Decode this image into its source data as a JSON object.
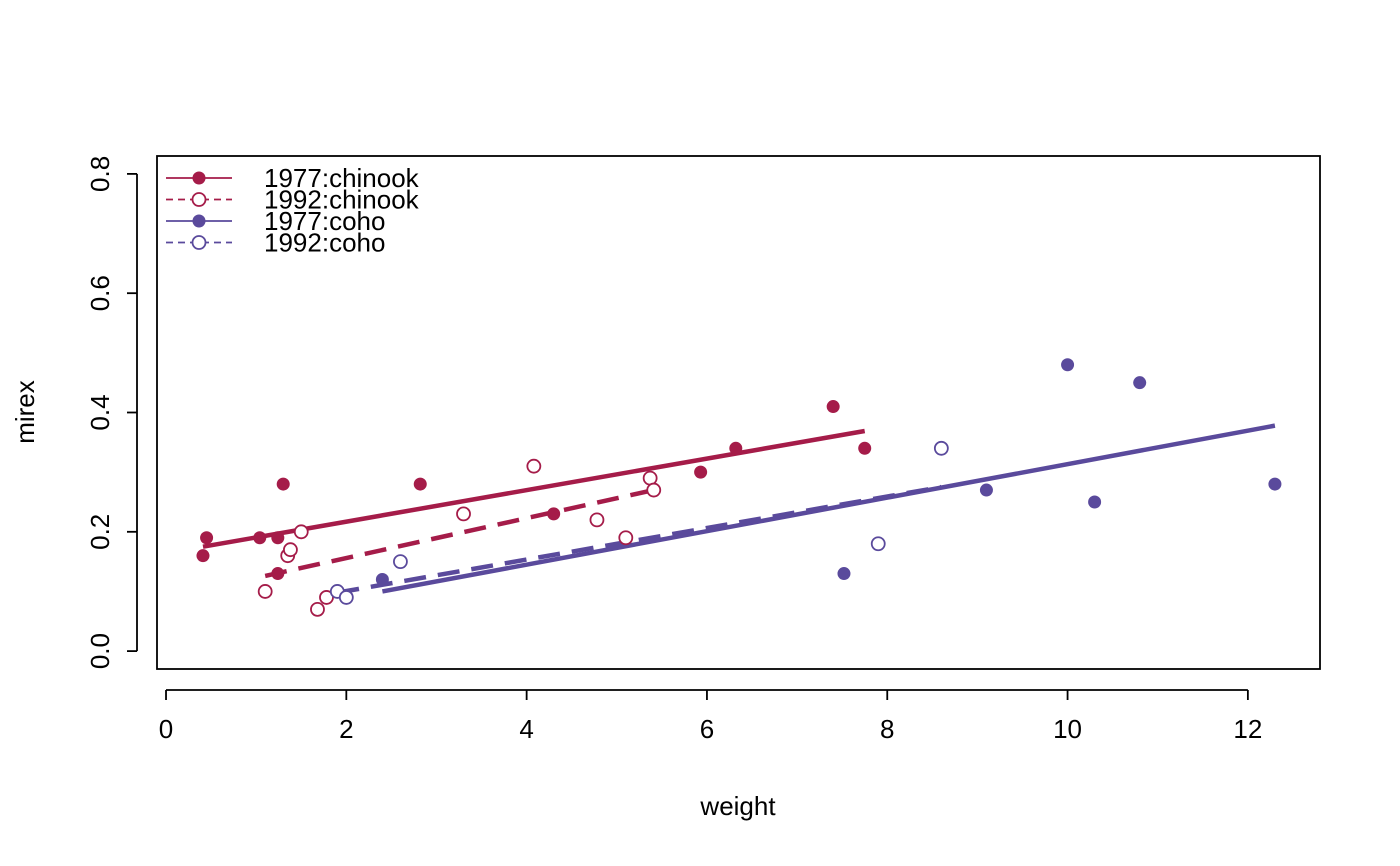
{
  "chart_data": {
    "type": "scatter",
    "title": "",
    "xlabel": "weight",
    "ylabel": "mirex",
    "xlim": [
      -0.1,
      12.8
    ],
    "ylim": [
      -0.03,
      0.83
    ],
    "x_ticks": [
      0,
      2,
      4,
      6,
      8,
      10,
      12
    ],
    "y_ticks": [
      0.0,
      0.2,
      0.4,
      0.6,
      0.8
    ],
    "x_tick_labels": [
      "0",
      "2",
      "4",
      "6",
      "8",
      "10",
      "12"
    ],
    "y_tick_labels": [
      "0.0",
      "0.2",
      "0.4",
      "0.6",
      "0.8"
    ],
    "grid": false,
    "legend_position": "top-left",
    "series": [
      {
        "name": "1977:chinook",
        "color": "#a51c49",
        "marker": "filled-circle",
        "line_style": "solid",
        "points": [
          [
            0.41,
            0.16
          ],
          [
            0.45,
            0.19
          ],
          [
            1.04,
            0.19
          ],
          [
            1.24,
            0.19
          ],
          [
            1.24,
            0.13
          ],
          [
            1.3,
            0.28
          ],
          [
            2.82,
            0.28
          ],
          [
            4.3,
            0.23
          ],
          [
            5.93,
            0.3
          ],
          [
            6.32,
            0.34
          ],
          [
            7.4,
            0.41
          ],
          [
            7.75,
            0.34
          ]
        ],
        "fit": [
          [
            0.41,
            0.175
          ],
          [
            7.75,
            0.369
          ]
        ]
      },
      {
        "name": "1992:chinook",
        "color": "#a51c49",
        "marker": "open-circle",
        "line_style": "dashed",
        "points": [
          [
            1.1,
            0.1
          ],
          [
            1.35,
            0.16
          ],
          [
            1.38,
            0.17
          ],
          [
            1.5,
            0.2
          ],
          [
            1.68,
            0.07
          ],
          [
            1.78,
            0.09
          ],
          [
            3.3,
            0.23
          ],
          [
            4.08,
            0.31
          ],
          [
            4.78,
            0.22
          ],
          [
            5.1,
            0.19
          ],
          [
            5.37,
            0.29
          ],
          [
            5.41,
            0.27
          ]
        ],
        "fit": [
          [
            1.1,
            0.126
          ],
          [
            5.41,
            0.27
          ]
        ]
      },
      {
        "name": "1977:coho",
        "color": "#5a4a9c",
        "marker": "filled-circle",
        "line_style": "solid",
        "points": [
          [
            2.4,
            0.12
          ],
          [
            7.52,
            0.13
          ],
          [
            9.1,
            0.27
          ],
          [
            10.0,
            0.48
          ],
          [
            10.3,
            0.25
          ],
          [
            10.8,
            0.45
          ],
          [
            12.3,
            0.28
          ]
        ],
        "fit": [
          [
            2.4,
            0.1
          ],
          [
            12.3,
            0.378
          ]
        ]
      },
      {
        "name": "1992:coho",
        "color": "#5a4a9c",
        "marker": "open-circle",
        "line_style": "dashed",
        "points": [
          [
            1.9,
            0.1
          ],
          [
            2.0,
            0.09
          ],
          [
            2.6,
            0.15
          ],
          [
            7.9,
            0.18
          ],
          [
            8.6,
            0.34
          ]
        ],
        "fit": [
          [
            1.9,
            0.098
          ],
          [
            8.6,
            0.275
          ]
        ]
      }
    ]
  }
}
